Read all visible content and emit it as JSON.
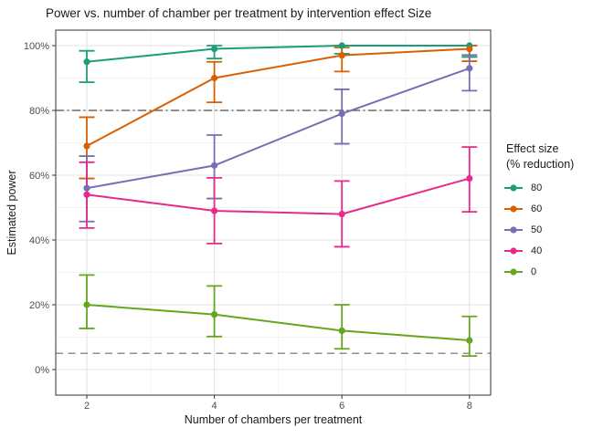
{
  "chart_data": {
    "type": "line",
    "title": "Power vs. number of chamber per treatment by intervention effect Size",
    "xlabel": "Number of chambers per treatment",
    "ylabel": "Estimated power",
    "x": [
      2,
      4,
      6,
      8
    ],
    "xticks": [
      "2",
      "4",
      "6",
      "8"
    ],
    "ytick_values": [
      0,
      20,
      40,
      60,
      80,
      100
    ],
    "yticks": [
      "0%",
      "20%",
      "40%",
      "60%",
      "80%",
      "100%"
    ],
    "ylim": [
      -7,
      105
    ],
    "grid": true,
    "legend_position": "right",
    "series": [
      {
        "name": "80",
        "color": "#1B9E77",
        "values": [
          95,
          99,
          100,
          100
        ],
        "ci_low": [
          88.7,
          96.0,
          97.5,
          96.5
        ],
        "ci_high": [
          98.4,
          100,
          100,
          100
        ]
      },
      {
        "name": "60",
        "color": "#D95F02",
        "values": [
          69,
          90,
          97,
          99
        ],
        "ci_low": [
          59.0,
          82.5,
          92.0,
          95.2
        ],
        "ci_high": [
          77.9,
          95.0,
          99.4,
          100
        ]
      },
      {
        "name": "50",
        "color": "#7570B3",
        "values": [
          56,
          63,
          79,
          93
        ],
        "ci_low": [
          45.7,
          52.8,
          69.7,
          86.1
        ],
        "ci_high": [
          65.9,
          72.4,
          86.5,
          97.1
        ]
      },
      {
        "name": "40",
        "color": "#E7298A",
        "values": [
          54,
          49,
          48,
          59
        ],
        "ci_low": [
          43.7,
          38.9,
          37.9,
          48.7
        ],
        "ci_high": [
          64.0,
          59.2,
          58.2,
          68.7
        ]
      },
      {
        "name": "0",
        "color": "#66A61E",
        "values": [
          20,
          17,
          12,
          9
        ],
        "ci_low": [
          12.7,
          10.2,
          6.4,
          4.2
        ],
        "ci_high": [
          29.2,
          25.8,
          20.0,
          16.4
        ]
      }
    ],
    "reference_lines": [
      {
        "y": 80,
        "style": "dashdot"
      },
      {
        "y": 5,
        "style": "dashed"
      }
    ]
  },
  "legend": {
    "title_line1": "Effect size",
    "title_line2": "(% reduction)",
    "items": [
      {
        "label": "80",
        "color": "#1B9E77"
      },
      {
        "label": "60",
        "color": "#D95F02"
      },
      {
        "label": "50",
        "color": "#7570B3"
      },
      {
        "label": "40",
        "color": "#E7298A"
      },
      {
        "label": "0",
        "color": "#66A61E"
      }
    ]
  },
  "colors": {
    "panel_border": "#474747",
    "grid_major": "#e3e3e3",
    "grid_minor": "#f2f2f2",
    "tick_mark": "#333333",
    "tick_label": "#4d4d4d",
    "ref_dashdot": "#4d4d4d",
    "ref_dashed": "#8f8f8f"
  }
}
